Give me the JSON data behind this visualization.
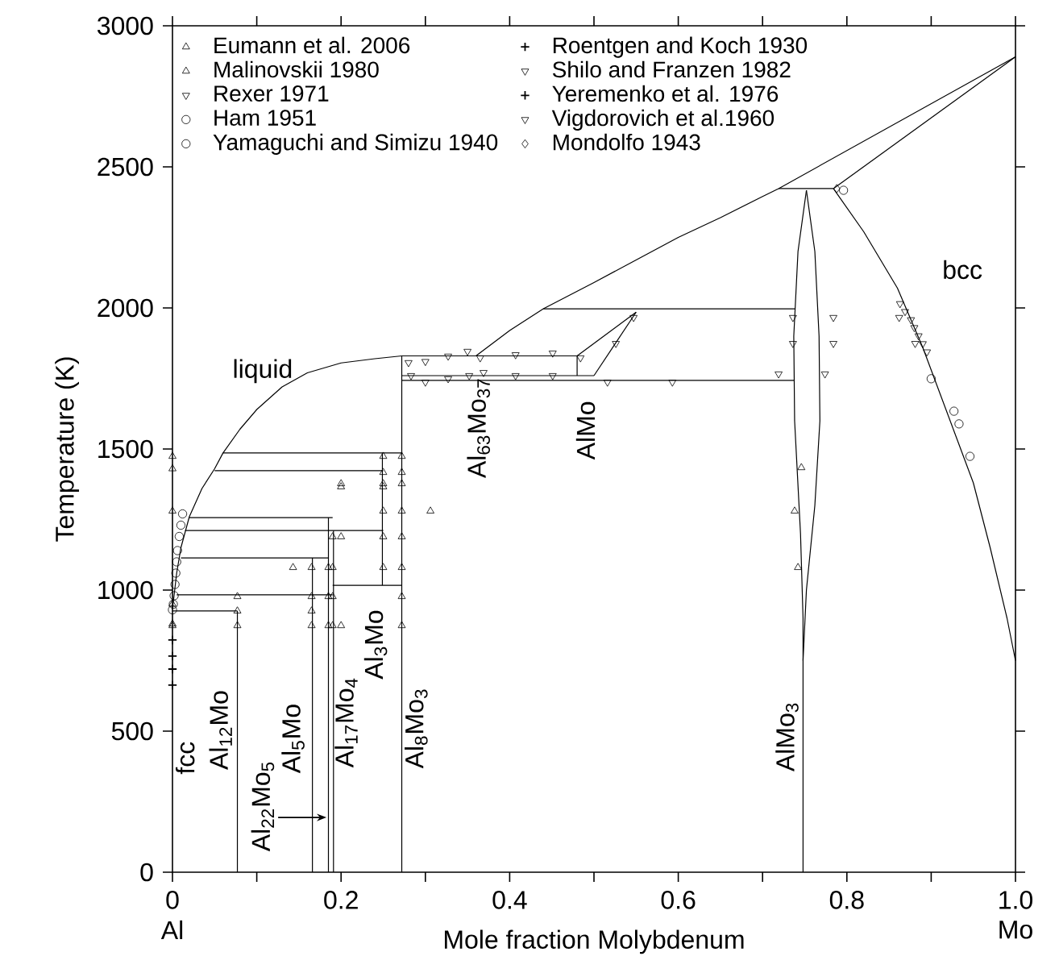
{
  "chart_data": {
    "type": "scatter",
    "xlabel": "Mole fraction Molybdenum",
    "ylabel": "Temperature (K)",
    "xlim": [
      0,
      1
    ],
    "ylim": [
      0,
      3000
    ],
    "xticks": [
      0,
      {
        "value": 0.1,
        "label": null
      },
      0.2,
      {
        "value": 0.3,
        "label": null
      },
      0.4,
      {
        "value": 0.5,
        "label": null
      },
      0.6,
      {
        "value": 0.7,
        "label": null
      },
      0.8,
      {
        "value": 0.9,
        "label": null
      },
      {
        "value": 1,
        "label": "1.0"
      }
    ],
    "yticks": [
      0,
      500,
      1000,
      1500,
      2000,
      2500,
      3000
    ],
    "grid": false,
    "legend": "top left",
    "annotations": [
      "liquid",
      "bcc",
      "fcc",
      "Al$_{12}$Mo",
      "Al$_{22}$Mo$_{5}$",
      "Al$_{5}$Mo",
      "Al$_{17}$Mo$_{4}$",
      "Al$_{3}$Mo",
      "Al$_{8}$Mo$_{3}$",
      "Al$_{63}$Mo$_{37}$",
      "AlMo",
      "AlMo$_{3}$",
      "Al",
      "Mo"
    ],
    "series": [
      {
        "type": "line",
        "color": "#000000",
        "x": [
          0,
          0.005,
          0.01,
          0.02,
          0.035,
          0.05,
          0.06,
          0.08,
          0.1,
          0.13,
          0.16,
          0.2,
          0.24,
          0.272,
          0.48
        ],
        "values": [
          933,
          1060,
          1150,
          1260,
          1360,
          1430,
          1486,
          1570,
          1640,
          1720,
          1770,
          1805,
          1820,
          1830,
          1830
        ]
      },
      {
        "type": "line",
        "color": "#000000",
        "x": [
          0.36,
          0.4,
          0.44,
          0.5,
          0.55,
          0.6,
          0.65,
          0.7,
          0.719,
          1
        ],
        "values": [
          1830,
          1920,
          1997,
          2090,
          2170,
          2250,
          2320,
          2395,
          2423,
          2890
        ]
      },
      {
        "type": "line",
        "color": "#000000",
        "x": [
          0.719,
          0.784
        ],
        "values": [
          2423,
          2423
        ]
      },
      {
        "type": "line",
        "color": "#000000",
        "x": [
          0.784,
          1
        ],
        "values": [
          2423,
          2890
        ]
      },
      {
        "type": "line",
        "color": "#000000",
        "x": [
          0.784,
          0.82,
          0.86,
          0.89,
          0.92,
          0.95,
          0.97,
          0.99,
          1
        ],
        "values": [
          2423,
          2270,
          2070,
          1860,
          1620,
          1380,
          1150,
          900,
          750
        ]
      },
      {
        "type": "line",
        "color": "#000000",
        "x": [
          0.752,
          0.742,
          0.737,
          0.738,
          0.745,
          0.748,
          0.748
        ],
        "values": [
          2417,
          2200,
          1900,
          1600,
          1200,
          900,
          0
        ]
      },
      {
        "type": "line",
        "color": "#000000",
        "x": [
          0.752,
          0.762,
          0.767,
          0.768,
          0.762,
          0.752,
          0.748
        ],
        "values": [
          2417,
          2200,
          1900,
          1600,
          1300,
          1000,
          750
        ]
      },
      {
        "type": "line",
        "color": "#000000",
        "x": [
          0.44,
          0.739
        ],
        "values": [
          1997,
          1997
        ]
      },
      {
        "type": "line",
        "color": "#000000",
        "x": [
          0.272,
          0.5
        ],
        "values": [
          1760,
          1760
        ]
      },
      {
        "type": "line",
        "color": "#000000",
        "x": [
          0.272,
          0.738
        ],
        "values": [
          1743,
          1743
        ]
      },
      {
        "type": "line",
        "color": "#000000",
        "x": [
          0.48,
          0.55
        ],
        "values": [
          1830,
          1985
        ]
      },
      {
        "type": "line",
        "color": "#000000",
        "x": [
          0.5,
          0.55
        ],
        "values": [
          1760,
          1985
        ]
      },
      {
        "type": "line",
        "color": "#000000",
        "x": [
          0.48,
          0.48
        ],
        "values": [
          1760,
          1830
        ]
      },
      {
        "type": "line",
        "color": "#000000",
        "x": [
          0.272,
          0.272
        ],
        "values": [
          0,
          1830
        ]
      },
      {
        "type": "line",
        "color": "#000000",
        "x": [
          0.06,
          0.272
        ],
        "values": [
          1486,
          1486
        ]
      },
      {
        "type": "line",
        "color": "#000000",
        "x": [
          0.05,
          0.25
        ],
        "values": [
          1423,
          1423
        ]
      },
      {
        "type": "line",
        "color": "#000000",
        "x": [
          0.02,
          0.19
        ],
        "values": [
          1257,
          1257
        ]
      },
      {
        "type": "line",
        "color": "#000000",
        "x": [
          0.015,
          0.25
        ],
        "values": [
          1211,
          1211
        ]
      },
      {
        "type": "line",
        "color": "#000000",
        "x": [
          0.01,
          0.185
        ],
        "values": [
          1114,
          1114
        ]
      },
      {
        "type": "line",
        "color": "#000000",
        "x": [
          0.005,
          0.19
        ],
        "values": [
          983,
          983
        ]
      },
      {
        "type": "line",
        "color": "#000000",
        "x": [
          0,
          0.077
        ],
        "values": [
          926,
          926
        ]
      },
      {
        "type": "line",
        "color": "#000000",
        "x": [
          0.19,
          0.272
        ],
        "values": [
          1017,
          1017
        ]
      },
      {
        "type": "line",
        "color": "#000000",
        "x": [
          0.077,
          0.077
        ],
        "values": [
          0,
          926
        ]
      },
      {
        "type": "line",
        "color": "#000000",
        "x": [
          0.166,
          0.166
        ],
        "values": [
          0,
          1114
        ]
      },
      {
        "type": "line",
        "color": "#000000",
        "x": [
          0.185,
          0.185
        ],
        "values": [
          0,
          1257
        ]
      },
      {
        "type": "line",
        "color": "#000000",
        "x": [
          0.191,
          0.191
        ],
        "values": [
          0,
          1211
        ]
      },
      {
        "type": "line",
        "color": "#000000",
        "x": [
          0.249,
          0.249
        ],
        "values": [
          1017,
          1486
        ]
      },
      {
        "name": "Eumann et al. 2006",
        "marker": "triangle",
        "color": "#000000",
        "x": [
          0,
          0,
          0,
          0,
          0.2,
          0.25,
          0.25,
          0.25,
          0.272,
          0.272,
          0.077,
          0.077,
          0.077,
          0.143,
          0.165,
          0.165,
          0.165,
          0.165,
          0.185,
          0.185,
          0.185,
          0.19,
          0.19,
          0.19,
          0.19,
          0.2,
          0.2,
          0.2,
          0.25,
          0.25,
          0.25,
          0.25,
          0.272,
          0.272,
          0.272,
          0.272,
          0.272,
          0.272,
          0.306,
          0.746,
          0.738,
          0.742
        ],
        "values": [
          1474,
          1430,
          1280,
          874,
          1366,
          1474,
          1417,
          1366,
          1474,
          1417,
          977,
          926,
          874,
          1080,
          1080,
          977,
          926,
          874,
          1080,
          977,
          874,
          1189,
          1080,
          977,
          874,
          1377,
          1189,
          874,
          1377,
          1280,
          1189,
          1080,
          1377,
          1280,
          1189,
          1080,
          977,
          874,
          1280,
          1434,
          1280,
          1080
        ]
      },
      {
        "name": "Malinovskii 1980",
        "marker": "triangle",
        "color": "#000000",
        "x": [
          0,
          0
        ],
        "values": [
          880,
          950
        ]
      },
      {
        "name": "Rexer 1971",
        "marker": "triangle-down",
        "color": "#000000",
        "x": [
          0.28,
          0.3,
          0.327,
          0.35,
          0.365,
          0.283,
          0.3,
          0.327,
          0.352,
          0.369,
          0.407,
          0.407,
          0.451,
          0.484,
          0.451,
          0.516,
          0.593,
          0.526,
          0.547,
          0.719,
          0.736,
          0.736,
          0.774,
          0.784,
          0.784
        ],
        "values": [
          1806,
          1810,
          1829,
          1846,
          1823,
          1760,
          1737,
          1749,
          1760,
          1771,
          1834,
          1760,
          1840,
          1823,
          1760,
          1737,
          1737,
          1874,
          1966,
          1766,
          1966,
          1874,
          1766,
          1966,
          1874
        ]
      },
      {
        "name": "Ham 1951",
        "marker": "circle",
        "color": "#000000",
        "x": [
          0.796,
          0.9,
          0.927,
          0.933,
          0.946
        ],
        "values": [
          2417,
          1749,
          1634,
          1589,
          1474
        ]
      },
      {
        "name": "Yamaguchi and Simizu 1940",
        "marker": "circle",
        "color": "#000000",
        "x": [
          0.012,
          0.01,
          0.008,
          0.006,
          0.005,
          0.004,
          0.003,
          0.002,
          0.001,
          0
        ],
        "values": [
          1270,
          1230,
          1190,
          1140,
          1100,
          1060,
          1020,
          980,
          950,
          930
        ]
      },
      {
        "name": "Roentgen and Koch 1930",
        "marker": "cross",
        "color": "#000000",
        "x": [
          0,
          0,
          0,
          0
        ],
        "values": [
          823,
          766,
          720,
          663
        ]
      },
      {
        "name": "Shilo and Franzen 1982",
        "marker": "triangle-down",
        "color": "#000000",
        "x": [
          0.863,
          0.869,
          0.876,
          0.88,
          0.885,
          0.89,
          0.895
        ],
        "values": [
          2015,
          1987,
          1958,
          1930,
          1901,
          1873,
          1844
        ]
      },
      {
        "name": "Yeremenko et al. 1976",
        "marker": "cross",
        "color": "#000000"
      },
      {
        "name": "Vigdorovich et al.1960",
        "marker": "triangle-down",
        "color": "#000000",
        "x": [
          0.862,
          0.881
        ],
        "values": [
          1966,
          1874
        ]
      },
      {
        "name": "Mondolfo 1943",
        "marker": "diamond",
        "color": "#000000",
        "x": [
          0.788
        ],
        "values": [
          2423
        ]
      }
    ]
  }
}
